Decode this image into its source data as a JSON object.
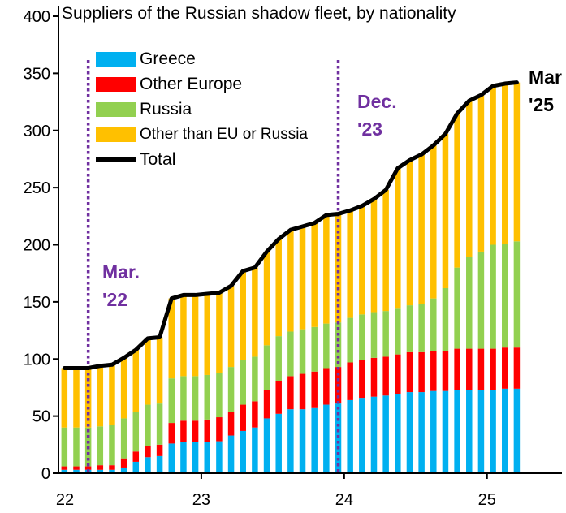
{
  "chart_data": {
    "type": "bar",
    "stacked": true,
    "title": "Suppliers of the Russian shadow fleet, by nationality",
    "xlabel": "",
    "ylabel": "",
    "ylim": [
      0,
      400
    ],
    "yticks": [
      0,
      50,
      100,
      150,
      200,
      250,
      300,
      350,
      400
    ],
    "xtick_labels": [
      "22",
      "23",
      "24",
      "25"
    ],
    "grid": false,
    "legend_position": "top-left",
    "categories": [
      "2022-01",
      "2022-02",
      "2022-03",
      "2022-04",
      "2022-05",
      "2022-06",
      "2022-07",
      "2022-08",
      "2022-09",
      "2022-10",
      "2022-11",
      "2022-12",
      "2023-01",
      "2023-02",
      "2023-03",
      "2023-04",
      "2023-05",
      "2023-06",
      "2023-07",
      "2023-08",
      "2023-09",
      "2023-10",
      "2023-11",
      "2023-12",
      "2024-01",
      "2024-02",
      "2024-03",
      "2024-04",
      "2024-05",
      "2024-06",
      "2024-07",
      "2024-08",
      "2024-09",
      "2024-10",
      "2024-11",
      "2024-12",
      "2025-01",
      "2025-02",
      "2025-03"
    ],
    "series": [
      {
        "name": "Greece",
        "color": "#00B0F0",
        "values": [
          3,
          3,
          3,
          3,
          3,
          5,
          10,
          14,
          15,
          26,
          27,
          27,
          27,
          28,
          33,
          37,
          40,
          48,
          52,
          56,
          56,
          57,
          60,
          61,
          64,
          66,
          67,
          68,
          69,
          71,
          71,
          72,
          72,
          73,
          73,
          73,
          73,
          74,
          74
        ]
      },
      {
        "name": "Other Europe",
        "color": "#FF0000",
        "values": [
          3,
          3,
          3,
          4,
          4,
          8,
          9,
          10,
          10,
          18,
          19,
          19,
          20,
          21,
          21,
          23,
          23,
          25,
          29,
          29,
          31,
          32,
          32,
          32,
          33,
          33,
          34,
          34,
          35,
          35,
          35,
          35,
          35,
          36,
          36,
          36,
          36,
          36,
          36
        ]
      },
      {
        "name": "Russia",
        "color": "#92D050",
        "values": [
          34,
          34,
          34,
          34,
          35,
          35,
          35,
          36,
          36,
          39,
          39,
          39,
          39,
          39,
          39,
          39,
          39,
          39,
          39,
          39,
          39,
          39,
          39,
          39,
          39,
          40,
          40,
          40,
          40,
          41,
          42,
          46,
          55,
          71,
          80,
          85,
          91,
          91,
          93
        ]
      },
      {
        "name": "Other than EU or Russia",
        "color": "#FFC000",
        "values": [
          52,
          52,
          52,
          53,
          53,
          53,
          54,
          58,
          58,
          70,
          71,
          71,
          71,
          70,
          71,
          78,
          78,
          82,
          85,
          89,
          90,
          91,
          95,
          95,
          94,
          95,
          99,
          106,
          123,
          127,
          131,
          134,
          135,
          135,
          137,
          137,
          139,
          140,
          139
        ]
      }
    ],
    "line_series": {
      "name": "Total",
      "color": "#000000",
      "values": [
        92,
        92,
        92,
        94,
        95,
        101,
        108,
        118,
        119,
        153,
        156,
        156,
        157,
        158,
        164,
        177,
        180,
        194,
        205,
        213,
        216,
        219,
        226,
        227,
        230,
        234,
        240,
        248,
        267,
        274,
        279,
        287,
        297,
        315,
        326,
        331,
        339,
        341,
        342
      ]
    },
    "markers": [
      {
        "category": "2022-03",
        "label_line1": "Mar.",
        "label_line2": "'22",
        "color": "#7030A0",
        "style": "dotted"
      },
      {
        "category": "2023-12",
        "label_line1": "Dec.",
        "label_line2": "'23",
        "color": "#7030A0",
        "style": "dotted"
      }
    ],
    "end_label": {
      "line1": "Mar",
      "line2": "'25",
      "color": "#000000"
    }
  }
}
